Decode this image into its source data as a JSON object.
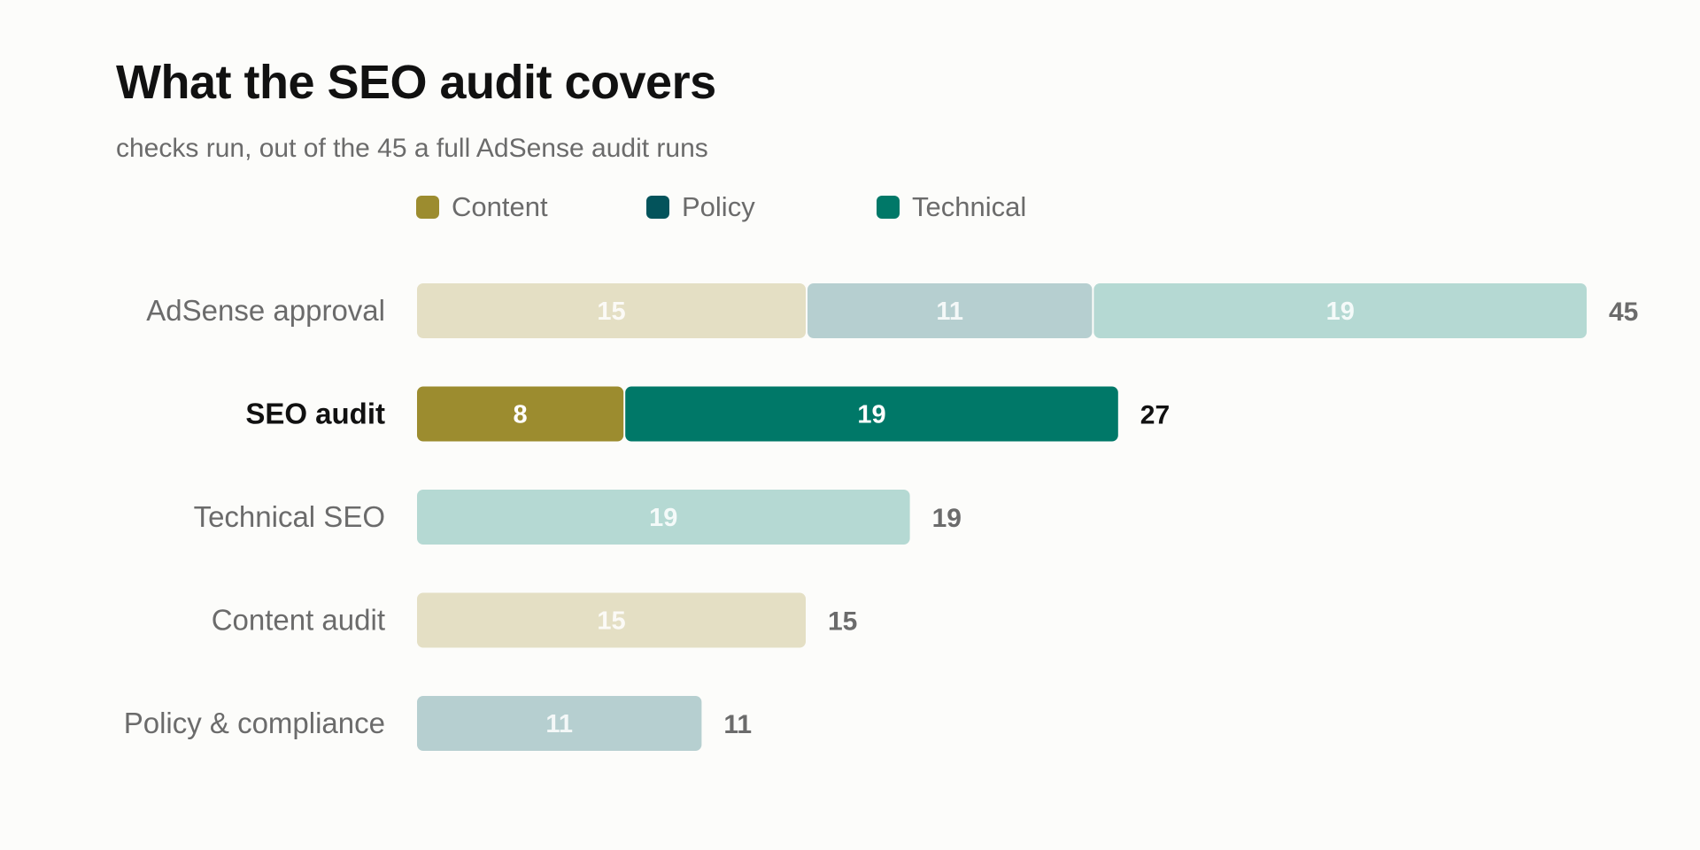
{
  "title": "What the SEO audit covers",
  "subtitle": "checks run, out of the 45 a full AdSense audit runs",
  "colors": {
    "Content": "#9c8c2f",
    "Policy": "#03535b",
    "Technical": "#007868",
    "Content_muted": "#e4dfc4",
    "Policy_muted": "#b6cfd0",
    "Technical_muted": "#b5d9d3",
    "label_default": "#6b6b6b",
    "label_highlight": "#111111"
  },
  "chart_data": {
    "type": "bar",
    "orientation": "horizontal",
    "stacked": true,
    "title": "What the SEO audit covers",
    "subtitle": "checks run, out of the 45 a full AdSense audit runs",
    "legend": [
      "Content",
      "Policy",
      "Technical"
    ],
    "legend_position": "top",
    "grid": false,
    "xlim": [
      0,
      45
    ],
    "categories": [
      "AdSense approval",
      "SEO audit",
      "Technical SEO",
      "Content audit",
      "Policy & compliance"
    ],
    "highlight": "SEO audit",
    "bars": [
      {
        "category": "AdSense approval",
        "total": 45,
        "segments": [
          {
            "series": "Content",
            "value": 15
          },
          {
            "series": "Policy",
            "value": 11
          },
          {
            "series": "Technical",
            "value": 19
          }
        ]
      },
      {
        "category": "SEO audit",
        "total": 27,
        "segments": [
          {
            "series": "Content",
            "value": 8
          },
          {
            "series": "Technical",
            "value": 19
          }
        ]
      },
      {
        "category": "Technical SEO",
        "total": 19,
        "segments": [
          {
            "series": "Technical",
            "value": 19
          }
        ]
      },
      {
        "category": "Content audit",
        "total": 15,
        "segments": [
          {
            "series": "Content",
            "value": 15
          }
        ]
      },
      {
        "category": "Policy & compliance",
        "total": 11,
        "segments": [
          {
            "series": "Policy",
            "value": 11
          }
        ]
      }
    ]
  }
}
